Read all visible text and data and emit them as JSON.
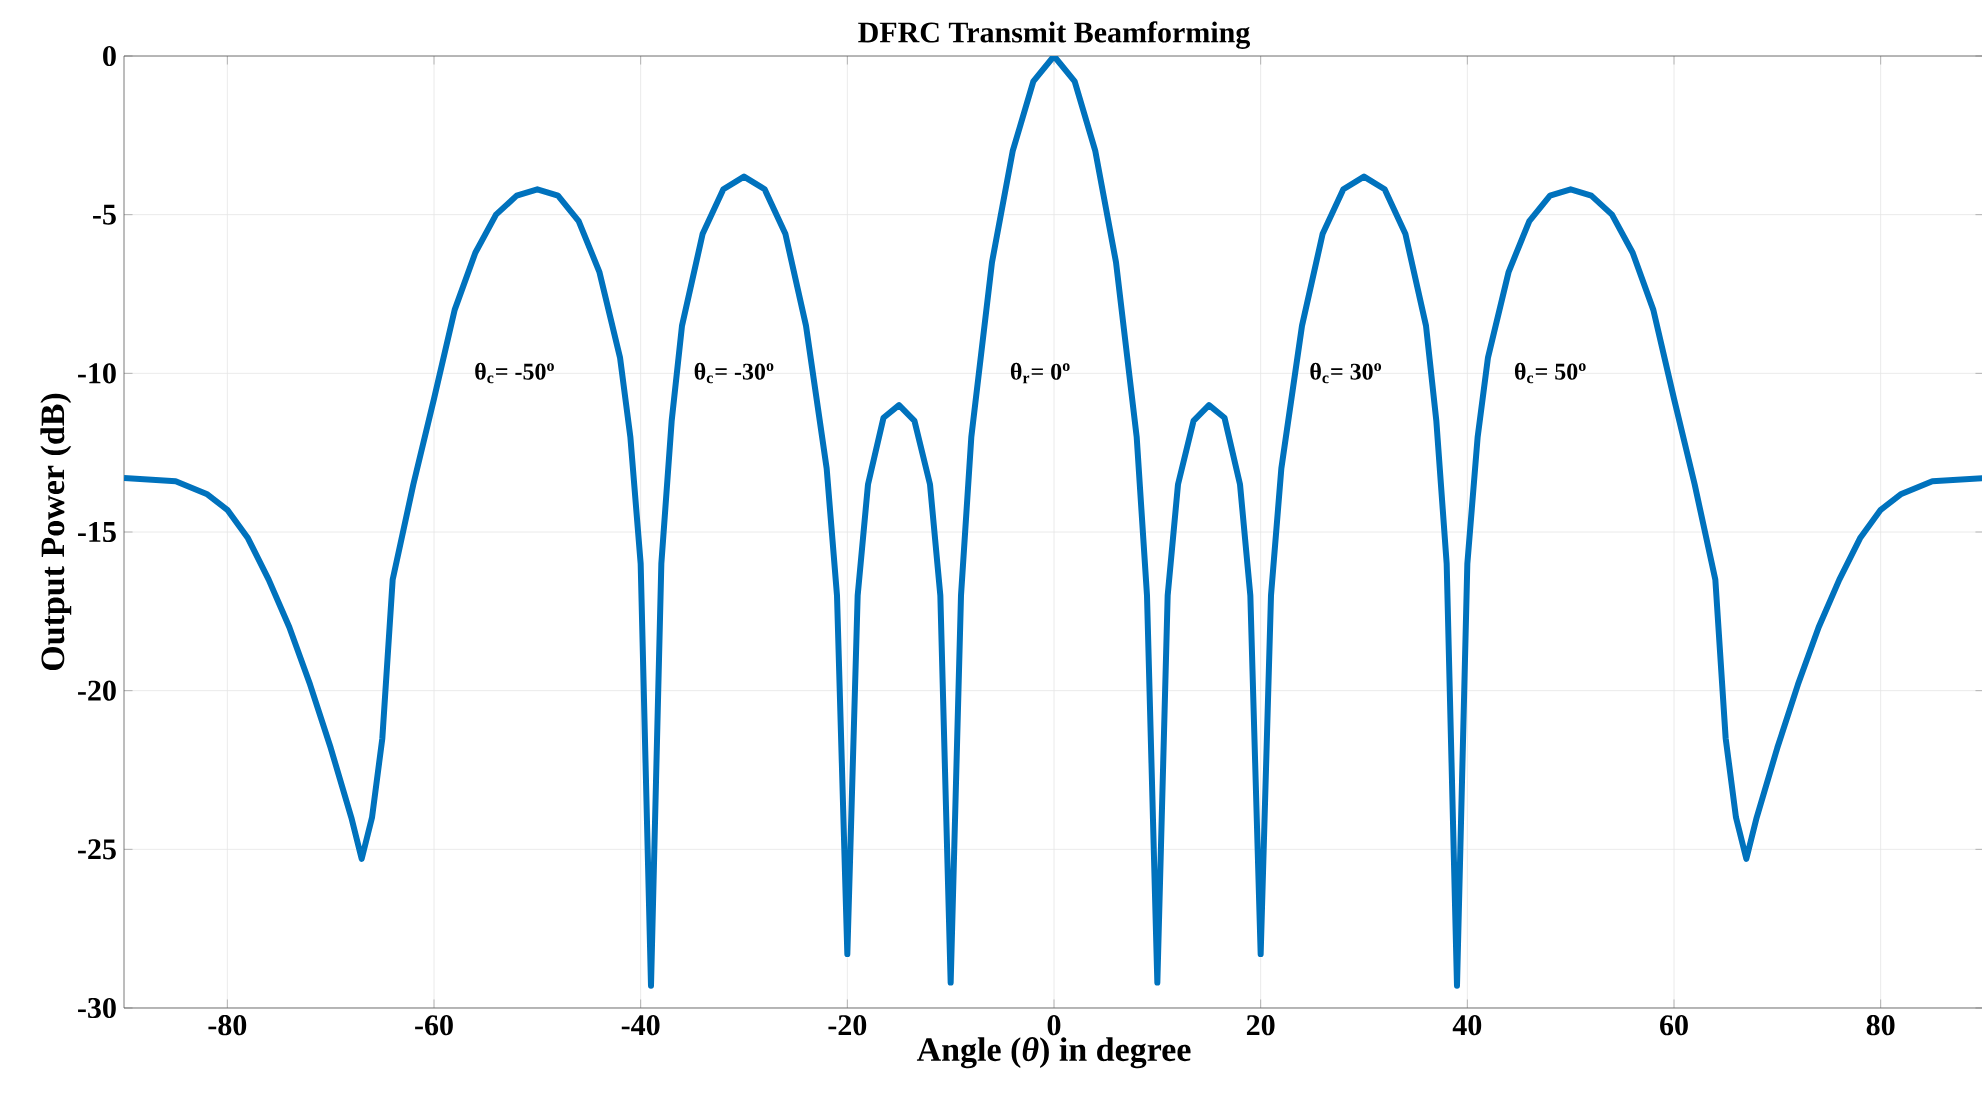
{
  "chart_data": {
    "type": "line",
    "title": "DFRC Transmit Beamforming",
    "xlabel": "Angle (*θ*) in degree",
    "ylabel": "Output Power (dB)",
    "x": [
      -90,
      -85,
      -82,
      -80,
      -78,
      -76,
      -74,
      -72,
      -70,
      -68,
      -67,
      -66,
      -65,
      -64,
      -62,
      -60,
      -58,
      -56,
      -54,
      -52,
      -50,
      -48,
      -46,
      -44,
      -42,
      -41,
      -40,
      -39,
      -38,
      -37,
      -36,
      -34,
      -32,
      -30,
      -28,
      -26,
      -24,
      -22,
      -21,
      -20,
      -19,
      -18,
      -16.5,
      -15,
      -13.5,
      -12,
      -11,
      -10,
      -9,
      -8,
      -6,
      -4,
      -2,
      0,
      2,
      4,
      6,
      8,
      9,
      10,
      11,
      12,
      13.5,
      15,
      16.5,
      18,
      19,
      20,
      21,
      22,
      24,
      26,
      28,
      30,
      32,
      34,
      36,
      37,
      38,
      39,
      40,
      41,
      42,
      44,
      46,
      48,
      50,
      52,
      54,
      56,
      58,
      60,
      62,
      64,
      65,
      66,
      67,
      68,
      70,
      72,
      74,
      76,
      78,
      80,
      82,
      85,
      90
    ],
    "series": [
      {
        "color": "#0072bd",
        "values": [
          -13.3,
          -13.4,
          -13.8,
          -14.3,
          -15.2,
          -16.5,
          -18,
          -19.8,
          -21.8,
          -24,
          -25.3,
          -24,
          -21.5,
          -16.5,
          -13.5,
          -10.8,
          -8,
          -6.2,
          -5,
          -4.4,
          -4.2,
          -4.4,
          -5.2,
          -6.8,
          -9.5,
          -12,
          -16,
          -29.3,
          -16,
          -11.5,
          -8.5,
          -5.6,
          -4.2,
          -3.8,
          -4.2,
          -5.6,
          -8.5,
          -13,
          -17,
          -28.3,
          -17,
          -13.5,
          -11.4,
          -11,
          -11.5,
          -13.5,
          -17,
          -29.2,
          -17,
          -12,
          -6.5,
          -3,
          -0.8,
          0,
          -0.8,
          -3,
          -6.5,
          -12,
          -17,
          -29.2,
          -17,
          -13.5,
          -11.5,
          -11,
          -11.4,
          -13.5,
          -17,
          -28.3,
          -17,
          -13,
          -8.5,
          -5.6,
          -4.2,
          -3.8,
          -4.2,
          -5.6,
          -8.5,
          -11.5,
          -16,
          -29.3,
          -16,
          -12,
          -9.5,
          -6.8,
          -5.2,
          -4.4,
          -4.2,
          -4.4,
          -5,
          -6.2,
          -8,
          -10.8,
          -13.5,
          -16.5,
          -21.5,
          -24,
          -25.3,
          -24,
          -21.8,
          -19.8,
          -18,
          -16.5,
          -15.2,
          -14.3,
          -13.8,
          -13.4,
          -13.3
        ]
      }
    ],
    "xlim": [
      -90,
      90
    ],
    "ylim": [
      -30,
      0
    ],
    "xticks": [
      -80,
      -60,
      -40,
      -20,
      0,
      20,
      40,
      60,
      80
    ],
    "yticks": [
      -30,
      -25,
      -20,
      -15,
      -10,
      -5,
      0
    ],
    "grid": true,
    "marker": "none",
    "line_style": "solid",
    "annotations": [
      "θ$_{c}$= -50$^{o}$",
      "θ$_{c}$= -30$^{o}$",
      "θ$_{r}$= 0$^{o}$",
      "θ$_{c}$= 30$^{o}$",
      "θ$_{c}$= 50$^{o}$"
    ]
  }
}
